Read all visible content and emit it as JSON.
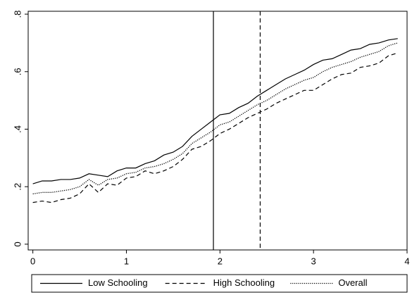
{
  "chart_data": {
    "type": "line",
    "x": [
      0,
      0.1,
      0.2,
      0.3,
      0.4,
      0.5,
      0.6,
      0.7,
      0.8,
      0.9,
      1,
      1.1,
      1.2,
      1.3,
      1.4,
      1.5,
      1.6,
      1.7,
      1.8,
      1.9,
      2,
      2.1,
      2.2,
      2.3,
      2.4,
      2.5,
      2.6,
      2.7,
      2.8,
      2.9,
      3,
      3.1,
      3.2,
      3.3,
      3.4,
      3.5,
      3.6,
      3.7,
      3.8,
      3.9
    ],
    "series": [
      {
        "name": "Low Schooling",
        "color": "#000000",
        "dash": "solid",
        "values": [
          0.21,
          0.22,
          0.22,
          0.225,
          0.225,
          0.23,
          0.245,
          0.24,
          0.235,
          0.255,
          0.265,
          0.265,
          0.28,
          0.29,
          0.31,
          0.32,
          0.34,
          0.375,
          0.4,
          0.425,
          0.45,
          0.455,
          0.475,
          0.49,
          0.515,
          0.535,
          0.555,
          0.575,
          0.59,
          0.605,
          0.625,
          0.64,
          0.645,
          0.66,
          0.675,
          0.68,
          0.695,
          0.7,
          0.71,
          0.715
        ]
      },
      {
        "name": "High Schooling",
        "color": "#000000",
        "dash": "dashed",
        "values": [
          0.145,
          0.15,
          0.145,
          0.155,
          0.16,
          0.175,
          0.21,
          0.18,
          0.21,
          0.205,
          0.23,
          0.235,
          0.255,
          0.245,
          0.255,
          0.27,
          0.295,
          0.33,
          0.34,
          0.36,
          0.385,
          0.4,
          0.42,
          0.44,
          0.455,
          0.47,
          0.49,
          0.505,
          0.52,
          0.535,
          0.535,
          0.555,
          0.575,
          0.59,
          0.595,
          0.615,
          0.62,
          0.63,
          0.655,
          0.665
        ]
      },
      {
        "name": "Overall",
        "color": "#000000",
        "dash": "dotted",
        "values": [
          0.175,
          0.18,
          0.18,
          0.185,
          0.19,
          0.2,
          0.225,
          0.205,
          0.225,
          0.23,
          0.245,
          0.25,
          0.265,
          0.27,
          0.28,
          0.295,
          0.315,
          0.35,
          0.37,
          0.39,
          0.415,
          0.425,
          0.445,
          0.465,
          0.485,
          0.5,
          0.52,
          0.54,
          0.555,
          0.57,
          0.58,
          0.6,
          0.615,
          0.625,
          0.635,
          0.65,
          0.66,
          0.67,
          0.69,
          0.7
        ]
      }
    ],
    "xlim": [
      -0.05,
      4
    ],
    "ylim": [
      -0.02,
      0.81
    ],
    "xticks": [
      0,
      1,
      2,
      3,
      4
    ],
    "yticks": [
      0,
      {
        "value": 0.2,
        "label": ".2"
      },
      {
        "value": 0.4,
        "label": ".4"
      },
      {
        "value": 0.6,
        "label": ".6"
      },
      {
        "value": 0.8,
        "label": ".8"
      }
    ],
    "vlines": [
      {
        "x": 1.93,
        "dash": "solid"
      },
      {
        "x": 2.43,
        "dash": "dashed"
      }
    ],
    "grid": false,
    "legend": "bottom"
  }
}
